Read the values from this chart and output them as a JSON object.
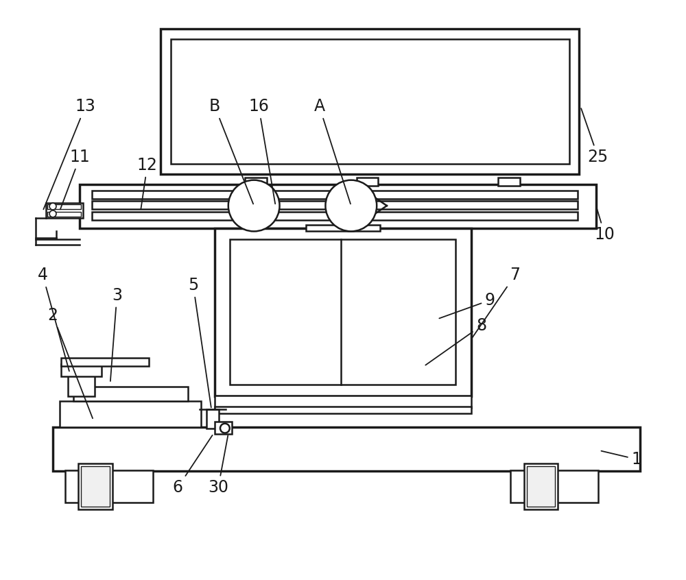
{
  "bg_color": "#ffffff",
  "lc": "#1a1a1a",
  "lw": 1.8,
  "tlw": 2.5,
  "fig_width": 10.0,
  "fig_height": 8.46
}
